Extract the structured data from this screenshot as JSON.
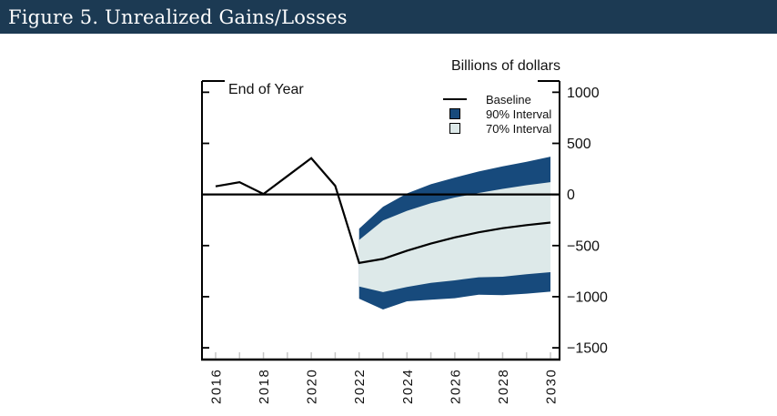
{
  "header": {
    "title": "Figure 5. Unrealized Gains/Losses"
  },
  "chart": {
    "units_label": "Billions of dollars",
    "annotation": "End of Year",
    "legend": {
      "baseline": "Baseline",
      "band90": "90% Interval",
      "band70": "70% Interval"
    },
    "colors": {
      "header_bg": "#1c3a53",
      "header_text": "#ffffff",
      "band90": "#174a7c",
      "band70": "#dde9e9",
      "line": "#000000",
      "axis": "#000000",
      "year_tick": "#c6c6c6",
      "text": "#111111"
    }
  },
  "chart_data": {
    "type": "line",
    "subtype": "fan-projection",
    "title": "Figure 5. Unrealized Gains/Losses",
    "ylabel": "Billions of dollars",
    "annotation": "End of Year",
    "units": "Billions of dollars",
    "xlim": [
      2015.43,
      2030.38
    ],
    "ylim": [
      -1615,
      1110
    ],
    "grid": false,
    "zero_line": true,
    "legend_position": "top-right",
    "y_ticks": [
      1000,
      500,
      0,
      -500,
      -1000,
      -1500
    ],
    "y_tick_labels": [
      "1000",
      "500",
      "0",
      "−500",
      "−1000",
      "−1500"
    ],
    "x_major_ticks": [
      2016,
      2018,
      2020,
      2022,
      2024,
      2026,
      2028,
      2030
    ],
    "x_tick_labels": [
      "2016",
      "2018",
      "2020",
      "2022",
      "2024",
      "2026",
      "2028",
      "2030"
    ],
    "x_minor_ticks": [
      2016,
      2017,
      2018,
      2019,
      2020,
      2021,
      2022,
      2023,
      2024,
      2025,
      2026,
      2027,
      2028,
      2029,
      2030
    ],
    "baseline": {
      "name": "Baseline",
      "years": [
        2016,
        2017,
        2018,
        2019,
        2020,
        2021,
        2022,
        2023,
        2024,
        2025,
        2026,
        2027,
        2028,
        2029,
        2030
      ],
      "values": [
        80,
        120,
        5,
        180,
        355,
        85,
        -670,
        -630,
        -550,
        -480,
        -420,
        -370,
        -330,
        -300,
        -275
      ]
    },
    "bands": [
      {
        "name": "90% Interval",
        "years": [
          2022,
          2023,
          2024,
          2025,
          2026,
          2027,
          2028,
          2029,
          2030
        ],
        "upper": [
          -335,
          -120,
          10,
          100,
          165,
          225,
          275,
          320,
          370
        ],
        "lower": [
          -1020,
          -1125,
          -1045,
          -1030,
          -1015,
          -980,
          -985,
          -970,
          -950
        ],
        "color": "#174a7c"
      },
      {
        "name": "70% Interval",
        "years": [
          2022,
          2023,
          2024,
          2025,
          2026,
          2027,
          2028,
          2029,
          2030
        ],
        "upper": [
          -445,
          -255,
          -160,
          -85,
          -30,
          15,
          55,
          90,
          120
        ],
        "lower": [
          -900,
          -955,
          -905,
          -865,
          -840,
          -810,
          -805,
          -780,
          -760
        ],
        "color": "#dde9e9"
      }
    ]
  }
}
